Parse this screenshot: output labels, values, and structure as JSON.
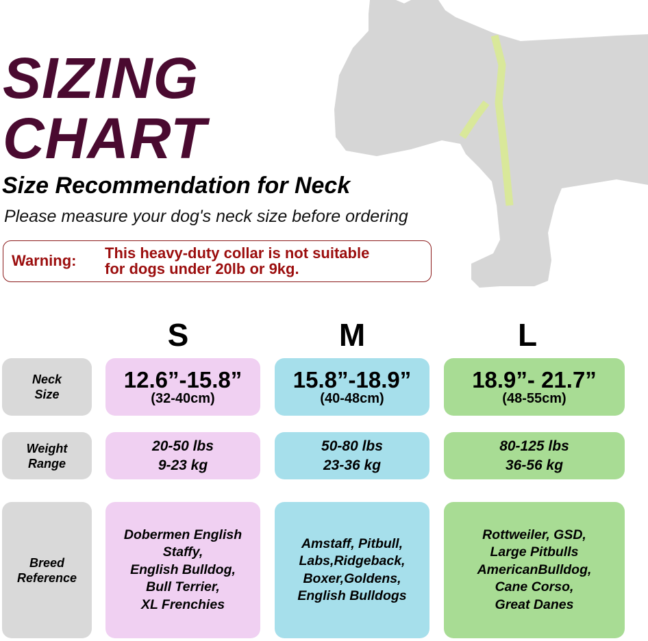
{
  "title": {
    "line1": "SIZING",
    "line2": "CHART"
  },
  "subtitle": "Size Recommendation for Neck",
  "instruction": "Please measure your dog's neck size before ordering",
  "warning": {
    "label": "Warning:",
    "line1": "This heavy-duty collar is not suitable",
    "line2": "for dogs under 20lb or 9kg."
  },
  "colors": {
    "title": "#4a0a30",
    "warning": "#9b0d0d",
    "label_bg": "#d9d9d9",
    "S": "#f0d0f2",
    "M": "#a6dfeb",
    "L": "#a8dc94",
    "dog": "#d6d6d6",
    "tape": "#d9e89a"
  },
  "illustration": "dog-silhouette-with-measuring-tape",
  "table": {
    "row_labels": {
      "neck": [
        "Neck",
        "Size"
      ],
      "weight": [
        "Weight",
        "Range"
      ],
      "breed": [
        "Breed",
        "Reference"
      ]
    },
    "sizes": [
      {
        "label": "S",
        "neck_in": "12.6”-15.8”",
        "neck_cm": "(32-40cm)",
        "weight_lbs": "20-50 lbs",
        "weight_kg": "9-23 kg",
        "breeds": [
          "Dobermen English",
          "Staffy,",
          "English Bulldog,",
          "Bull Terrier,",
          "XL Frenchies"
        ]
      },
      {
        "label": "M",
        "neck_in": "15.8”-18.9”",
        "neck_cm": "(40-48cm)",
        "weight_lbs": "50-80 lbs",
        "weight_kg": "23-36 kg",
        "breeds": [
          "Amstaff, Pitbull,",
          "Labs,Ridgeback,",
          "Boxer,Goldens,",
          "English Bulldogs"
        ]
      },
      {
        "label": "L",
        "neck_in": "18.9”- 21.7”",
        "neck_cm": "(48-55cm)",
        "weight_lbs": "80-125 lbs",
        "weight_kg": "36-56 kg",
        "breeds": [
          "Rottweiler, GSD,",
          "Large Pitbulls",
          "AmericanBulldog,",
          "Cane Corso,",
          "Great Danes"
        ]
      }
    ]
  }
}
